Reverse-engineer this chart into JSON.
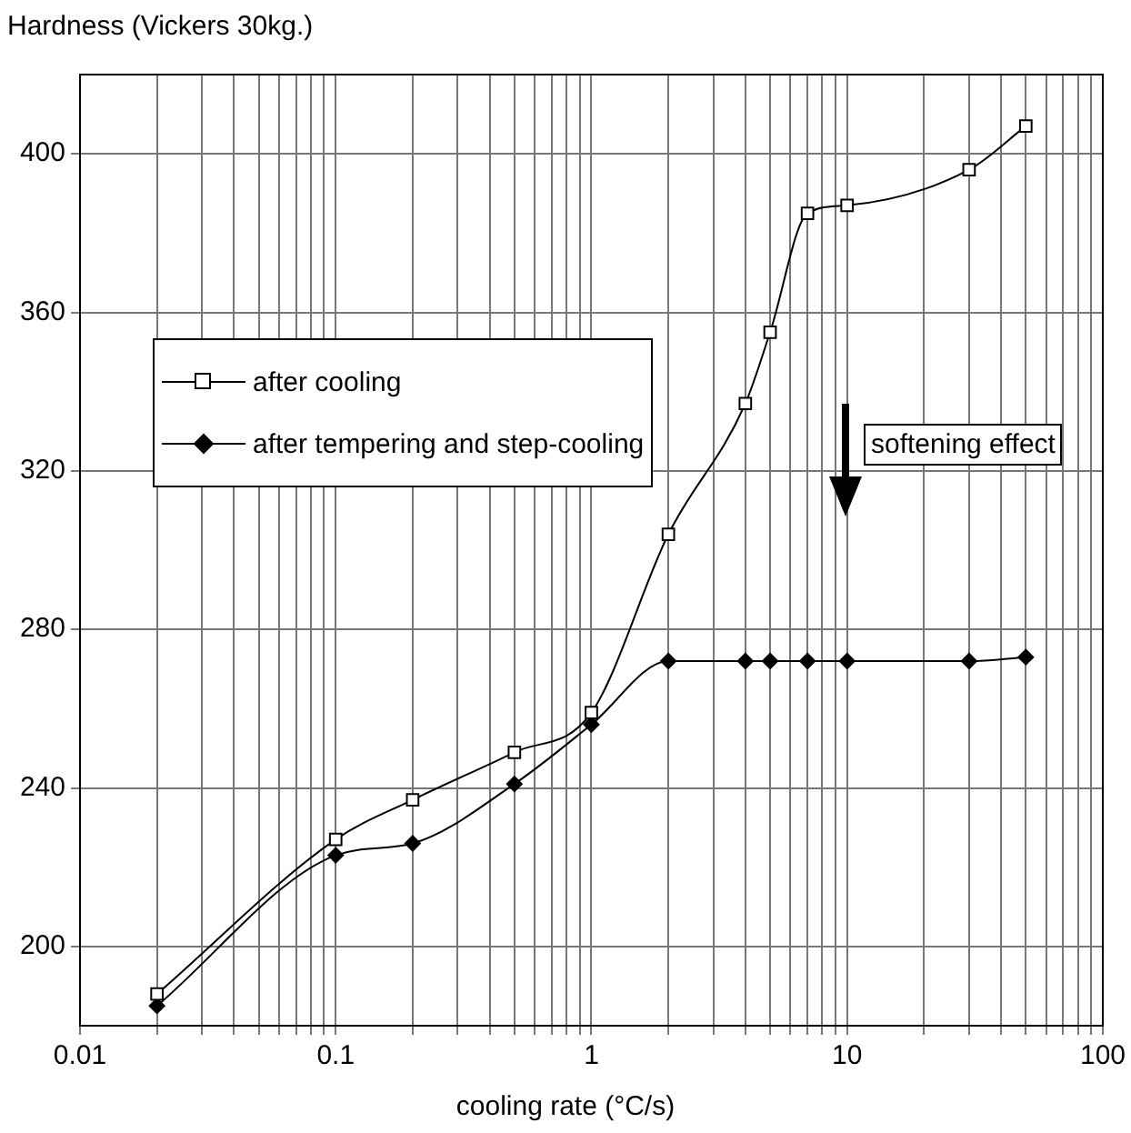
{
  "chart_data": {
    "type": "line",
    "ylabel": "Hardness (Vickers 30kg.)",
    "xlabel": "cooling rate (°C/s)",
    "log": "x",
    "grid": true,
    "legend": "left",
    "line_style": "solid",
    "annotations": [
      "softening effect"
    ],
    "xlim": [
      0.01,
      100
    ],
    "xticks": [
      0.01,
      {
        "value": 0.02,
        "label": null
      },
      {
        "value": 0.03,
        "label": null
      },
      {
        "value": 0.04,
        "label": null
      },
      {
        "value": 0.05,
        "label": null
      },
      {
        "value": 0.06,
        "label": null
      },
      {
        "value": 0.07,
        "label": null
      },
      {
        "value": 0.08,
        "label": null
      },
      {
        "value": 0.09,
        "label": null
      },
      0.1,
      {
        "value": 0.2,
        "label": null
      },
      {
        "value": 0.3,
        "label": null
      },
      {
        "value": 0.4,
        "label": null
      },
      {
        "value": 0.5,
        "label": null
      },
      {
        "value": 0.6,
        "label": null
      },
      {
        "value": 0.7,
        "label": null
      },
      {
        "value": 0.8,
        "label": null
      },
      {
        "value": 0.9,
        "label": null
      },
      1,
      {
        "value": 2,
        "label": null
      },
      {
        "value": 3,
        "label": null
      },
      {
        "value": 4,
        "label": null
      },
      {
        "value": 5,
        "label": null
      },
      {
        "value": 6,
        "label": null
      },
      {
        "value": 7,
        "label": null
      },
      {
        "value": 8,
        "label": null
      },
      {
        "value": 9,
        "label": null
      },
      10,
      {
        "value": 20,
        "label": null
      },
      {
        "value": 30,
        "label": null
      },
      {
        "value": 40,
        "label": null
      },
      {
        "value": 50,
        "label": null
      },
      {
        "value": 60,
        "label": null
      },
      {
        "value": 70,
        "label": null
      },
      {
        "value": 80,
        "label": null
      },
      {
        "value": 90,
        "label": null
      },
      100
    ],
    "ylim": [
      180,
      420
    ],
    "yticks": [
      200,
      240,
      280,
      320,
      360,
      400
    ],
    "series": [
      {
        "name": "after cooling",
        "color": "#000000",
        "marker": "square",
        "x": [
          0.02,
          0.1,
          0.2,
          0.5,
          1,
          2,
          4,
          5,
          7,
          10,
          30,
          50
        ],
        "values": [
          188,
          227,
          237,
          249,
          259,
          304,
          337,
          355,
          385,
          387,
          396,
          407
        ]
      },
      {
        "name": "after tempering and step-cooling",
        "color": "#000000",
        "marker": "diamond",
        "x": [
          0.02,
          0.1,
          0.2,
          0.5,
          1,
          2,
          4,
          5,
          7,
          10,
          30,
          50
        ],
        "values": [
          185,
          223,
          226,
          241,
          256,
          272,
          272,
          272,
          272,
          272,
          272,
          273
        ]
      }
    ]
  }
}
